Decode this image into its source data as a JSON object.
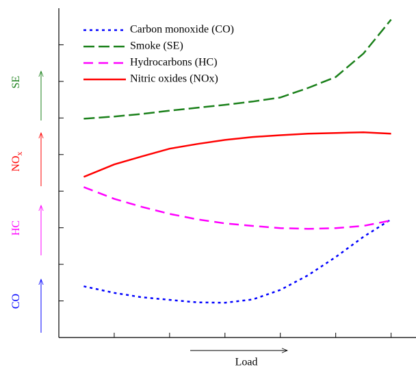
{
  "chart_data": {
    "type": "line",
    "x_label": "Load",
    "x": [
      0.45,
      1,
      1.5,
      2,
      2.5,
      3,
      3.5,
      4,
      4.5,
      5,
      5.5,
      6
    ],
    "xlim": [
      0,
      6.45
    ],
    "xticks": [
      1,
      2,
      3,
      4,
      5,
      6
    ],
    "ylim": [
      0,
      9
    ],
    "yticks": [
      1,
      2,
      3,
      4,
      5,
      6,
      7,
      8
    ],
    "legend_position": "upper left",
    "series": [
      {
        "name": "Carbon monoxide (CO)",
        "color": "#0000ff",
        "line_style": "dotted",
        "values": [
          1.4,
          1.22,
          1.1,
          1.03,
          0.96,
          0.95,
          1.04,
          1.3,
          1.7,
          2.2,
          2.75,
          3.23
        ]
      },
      {
        "name": "Smoke (SE)",
        "color": "#1a801a",
        "line_style": "long-dashed",
        "values": [
          5.98,
          6.04,
          6.11,
          6.2,
          6.28,
          6.36,
          6.45,
          6.56,
          6.82,
          7.12,
          7.76,
          8.69
        ]
      },
      {
        "name": "Hydrocarbons (HC)",
        "color": "#ff00ff",
        "line_style": "dashed",
        "values": [
          4.11,
          3.79,
          3.57,
          3.38,
          3.23,
          3.12,
          3.05,
          2.99,
          2.97,
          2.99,
          3.05,
          3.2
        ]
      },
      {
        "name": "Nitric oxides (NOx)",
        "color": "#ff0000",
        "line_style": "solid",
        "values": [
          4.39,
          4.73,
          4.95,
          5.16,
          5.29,
          5.4,
          5.48,
          5.53,
          5.57,
          5.59,
          5.61,
          5.57
        ]
      }
    ],
    "side_labels": [
      {
        "text": "SE",
        "color": "#1a801a"
      },
      {
        "text": "NO",
        "sub": "x",
        "color": "#ff0000"
      },
      {
        "text": "HC",
        "color": "#ff00ff"
      },
      {
        "text": "CO",
        "color": "#0000ff"
      }
    ]
  }
}
